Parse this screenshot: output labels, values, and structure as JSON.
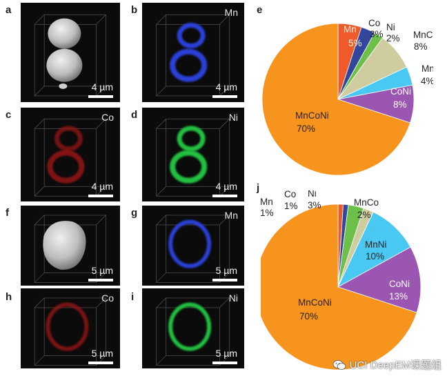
{
  "panels": [
    {
      "id": "a",
      "label": "a",
      "element": "",
      "scale": "4 µm",
      "kind": "gray-double"
    },
    {
      "id": "b",
      "label": "b",
      "element": "Mn",
      "scale": "4 µm",
      "kind": "ring-double",
      "color": "#2a3fd8"
    },
    {
      "id": "c",
      "label": "c",
      "element": "Co",
      "scale": "4 µm",
      "kind": "ring-double",
      "color": "#a01818"
    },
    {
      "id": "d",
      "label": "d",
      "element": "Ni",
      "scale": "4 µm",
      "kind": "ring-double",
      "color": "#20c040"
    },
    {
      "id": "f",
      "label": "f",
      "element": "",
      "scale": "5 µm",
      "kind": "gray-single"
    },
    {
      "id": "g",
      "label": "g",
      "element": "Mn",
      "scale": "5 µm",
      "kind": "ring-single",
      "color": "#2a3fd8"
    },
    {
      "id": "h",
      "label": "h",
      "element": "Co",
      "scale": "5 µm",
      "kind": "ring-single",
      "color": "#a01818"
    },
    {
      "id": "i",
      "label": "i",
      "element": "Ni",
      "scale": "5 µm",
      "kind": "ring-single",
      "color": "#20c040"
    }
  ],
  "chart_data": [
    {
      "type": "pie",
      "panel_label": "e",
      "slices": [
        {
          "name": "Mn",
          "value": 5,
          "label": "5%",
          "color": "#ee5a2a"
        },
        {
          "name": "Co",
          "value": 3,
          "label": "3%",
          "color": "#34469c"
        },
        {
          "name": "Ni",
          "value": 2,
          "label": "2%",
          "color": "#6cc04a"
        },
        {
          "name": "MnCo",
          "value": 8,
          "label": "8%",
          "color": "#cfcca0"
        },
        {
          "name": "MnNi",
          "value": 4,
          "label": "4%",
          "color": "#49c8f2"
        },
        {
          "name": "CoNi",
          "value": 8,
          "label": "8%",
          "color": "#9a56b0"
        },
        {
          "name": "MnCoNi",
          "value": 70,
          "label": "70%",
          "color": "#f7941d"
        }
      ]
    },
    {
      "type": "pie",
      "panel_label": "j",
      "slices": [
        {
          "name": "Mn",
          "value": 1,
          "label": "1%",
          "color": "#ee5a2a"
        },
        {
          "name": "Co",
          "value": 1,
          "label": "1%",
          "color": "#34469c"
        },
        {
          "name": "Ni",
          "value": 3,
          "label": "3%",
          "color": "#6cc04a"
        },
        {
          "name": "MnCo",
          "value": 2,
          "label": "2%",
          "color": "#cfcca0"
        },
        {
          "name": "MnNi",
          "value": 10,
          "label": "10%",
          "color": "#49c8f2"
        },
        {
          "name": "CoNi",
          "value": 13,
          "label": "13%",
          "color": "#9a56b0"
        },
        {
          "name": "MnCoNi",
          "value": 70,
          "label": "70%",
          "color": "#f7941d"
        }
      ]
    }
  ],
  "watermark": {
    "text": "UCI DeepEM课题组",
    "icon": "wechat-icon"
  }
}
